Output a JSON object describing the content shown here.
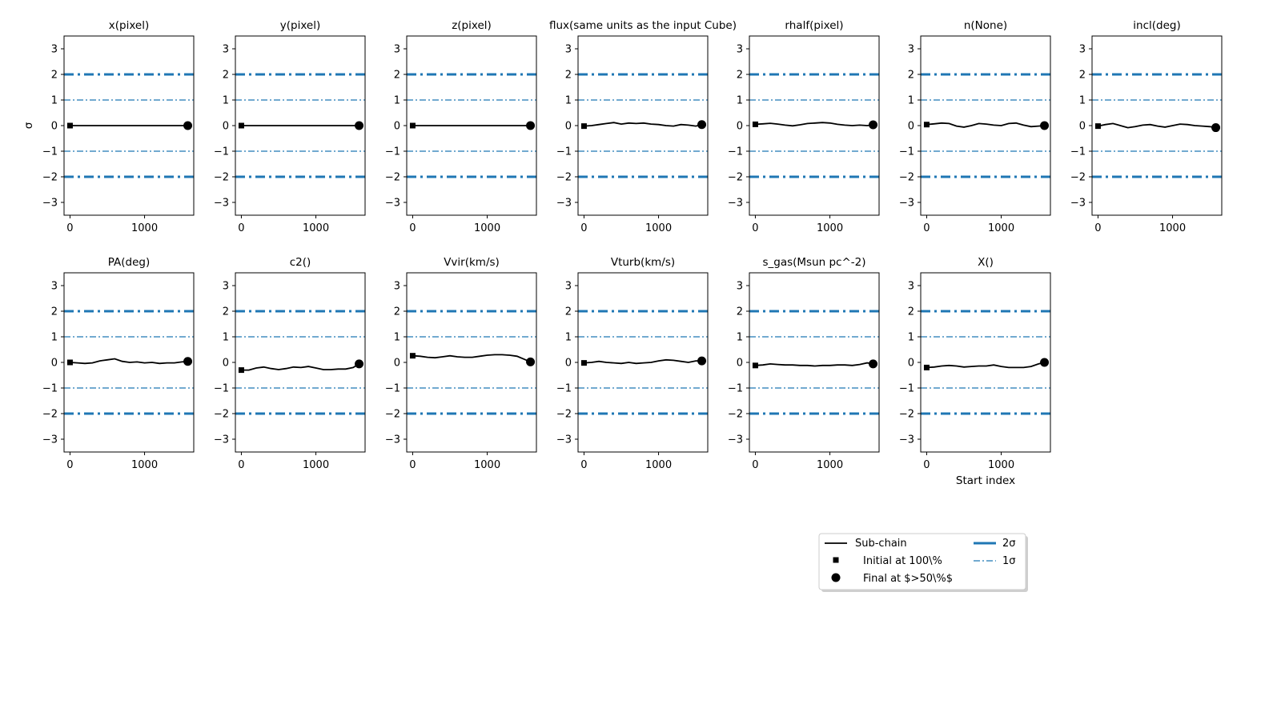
{
  "chart_data": {
    "type": "line",
    "ylabel": "σ",
    "xlabel": "Start index",
    "ylim": [
      -3.5,
      3.5
    ],
    "xlim": [
      -80,
      1660
    ],
    "yticks": [
      3,
      2,
      1,
      0,
      -1,
      -2,
      -3
    ],
    "yticklabels": [
      "3",
      "2",
      "1",
      "0",
      "−1",
      "−2",
      "−3"
    ],
    "xticks": [
      0,
      1000
    ],
    "xticklabels": [
      "0",
      "1000"
    ],
    "reference_lines": [
      {
        "name": "2σ",
        "values": [
          2,
          -2
        ],
        "style": "thick dash-dot",
        "color": "#1f77b4"
      },
      {
        "name": "1σ",
        "values": [
          1,
          -1
        ],
        "style": "thin dash-dot",
        "color": "#1f77b4"
      }
    ],
    "x": [
      0,
      100,
      200,
      300,
      400,
      500,
      600,
      700,
      800,
      900,
      1000,
      1100,
      1200,
      1300,
      1400,
      1500,
      1580
    ],
    "panels": [
      {
        "title": "x(pixel)",
        "values": [
          0,
          0,
          0,
          0,
          0,
          0,
          0,
          0,
          0,
          0,
          0,
          0,
          0,
          0,
          0,
          0,
          0
        ]
      },
      {
        "title": "y(pixel)",
        "values": [
          0,
          0,
          0,
          0,
          0,
          0,
          0,
          0,
          0,
          0,
          0,
          0,
          0,
          0,
          0,
          0,
          0
        ]
      },
      {
        "title": "z(pixel)",
        "values": [
          0,
          0,
          0,
          0,
          0,
          0,
          0,
          0,
          0,
          0,
          0,
          0,
          0,
          0,
          0,
          0,
          0
        ]
      },
      {
        "title": "flux(same units as the input Cube)",
        "values": [
          -0.02,
          0.0,
          0.04,
          0.08,
          0.12,
          0.06,
          0.1,
          0.08,
          0.1,
          0.06,
          0.04,
          0.0,
          -0.02,
          0.04,
          0.02,
          -0.02,
          0.04
        ]
      },
      {
        "title": "rhalf(pixel)",
        "values": [
          0.05,
          0.07,
          0.09,
          0.06,
          0.02,
          -0.01,
          0.03,
          0.08,
          0.1,
          0.12,
          0.1,
          0.05,
          0.02,
          0.0,
          0.02,
          0.0,
          0.03
        ]
      },
      {
        "title": "n(None)",
        "values": [
          0.04,
          0.07,
          0.1,
          0.08,
          -0.02,
          -0.06,
          0.0,
          0.08,
          0.06,
          0.02,
          0.0,
          0.08,
          0.1,
          0.02,
          -0.04,
          -0.02,
          0.0
        ]
      },
      {
        "title": "incl(deg)",
        "values": [
          -0.02,
          0.04,
          0.08,
          0.0,
          -0.08,
          -0.04,
          0.02,
          0.04,
          -0.02,
          -0.06,
          0.0,
          0.06,
          0.04,
          0.0,
          -0.02,
          -0.04,
          -0.08
        ]
      },
      {
        "title": "PA(deg)",
        "values": [
          0.0,
          -0.02,
          -0.04,
          -0.02,
          0.06,
          0.1,
          0.14,
          0.04,
          0.0,
          0.02,
          -0.02,
          0.0,
          -0.04,
          -0.02,
          -0.02,
          0.02,
          0.04
        ]
      },
      {
        "title": "c2()",
        "values": [
          -0.3,
          -0.3,
          -0.22,
          -0.18,
          -0.24,
          -0.28,
          -0.24,
          -0.18,
          -0.2,
          -0.16,
          -0.22,
          -0.28,
          -0.28,
          -0.26,
          -0.26,
          -0.2,
          -0.06
        ]
      },
      {
        "title": "Vvir(km/s)",
        "values": [
          0.26,
          0.24,
          0.2,
          0.18,
          0.22,
          0.26,
          0.22,
          0.2,
          0.2,
          0.24,
          0.28,
          0.3,
          0.3,
          0.28,
          0.24,
          0.12,
          0.02
        ]
      },
      {
        "title": "Vturb(km/s)",
        "values": [
          -0.02,
          0.0,
          0.04,
          0.0,
          -0.02,
          -0.04,
          0.0,
          -0.04,
          -0.02,
          0.0,
          0.06,
          0.1,
          0.08,
          0.04,
          0.0,
          0.06,
          0.06
        ]
      },
      {
        "title": "s_gas(Msun pc^-2)",
        "values": [
          -0.12,
          -0.1,
          -0.06,
          -0.08,
          -0.1,
          -0.1,
          -0.12,
          -0.12,
          -0.14,
          -0.12,
          -0.12,
          -0.1,
          -0.1,
          -0.12,
          -0.08,
          -0.02,
          -0.06
        ]
      },
      {
        "title": "X()",
        "values": [
          -0.2,
          -0.18,
          -0.14,
          -0.12,
          -0.14,
          -0.18,
          -0.16,
          -0.14,
          -0.14,
          -0.1,
          -0.16,
          -0.2,
          -0.2,
          -0.2,
          -0.16,
          -0.06,
          0.0
        ]
      }
    ],
    "legend": {
      "placement": "lower-right",
      "entries": [
        {
          "label": "Sub-chain",
          "marker": "line"
        },
        {
          "label": "2σ",
          "marker": "thick-dashdot"
        },
        {
          "label": "Initial at 100\\%",
          "marker": "square"
        },
        {
          "label": "1σ",
          "marker": "thin-dashdot"
        },
        {
          "label": "Final at $>50\\%$",
          "marker": "circle"
        }
      ]
    },
    "colors": {
      "line": "#000000",
      "sigma": "#1f77b4"
    }
  }
}
